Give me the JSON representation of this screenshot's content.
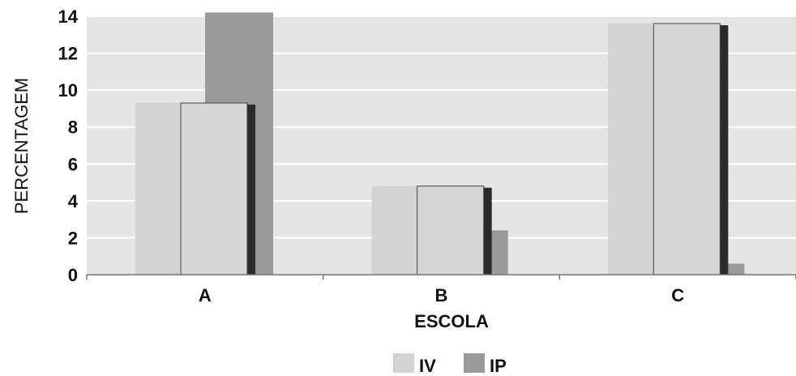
{
  "chart_data": {
    "type": "bar",
    "title": "",
    "xlabel": "ESCOLA",
    "ylabel": "PERCENTAGEM",
    "categories": [
      "A",
      "B",
      "C"
    ],
    "series": [
      {
        "name": "IV",
        "values": [
          9.3,
          4.8,
          13.6
        ],
        "color": "#d2d2d2"
      },
      {
        "name": "IP",
        "values": [
          14.2,
          2.4,
          0.6
        ],
        "color": "#999999"
      }
    ],
    "ylim": [
      0,
      14
    ],
    "yticks": [
      0,
      2,
      4,
      6,
      8,
      10,
      12,
      14
    ],
    "grid": true,
    "legend_position": "bottom-center",
    "plot_background": "#e5e5e5"
  }
}
